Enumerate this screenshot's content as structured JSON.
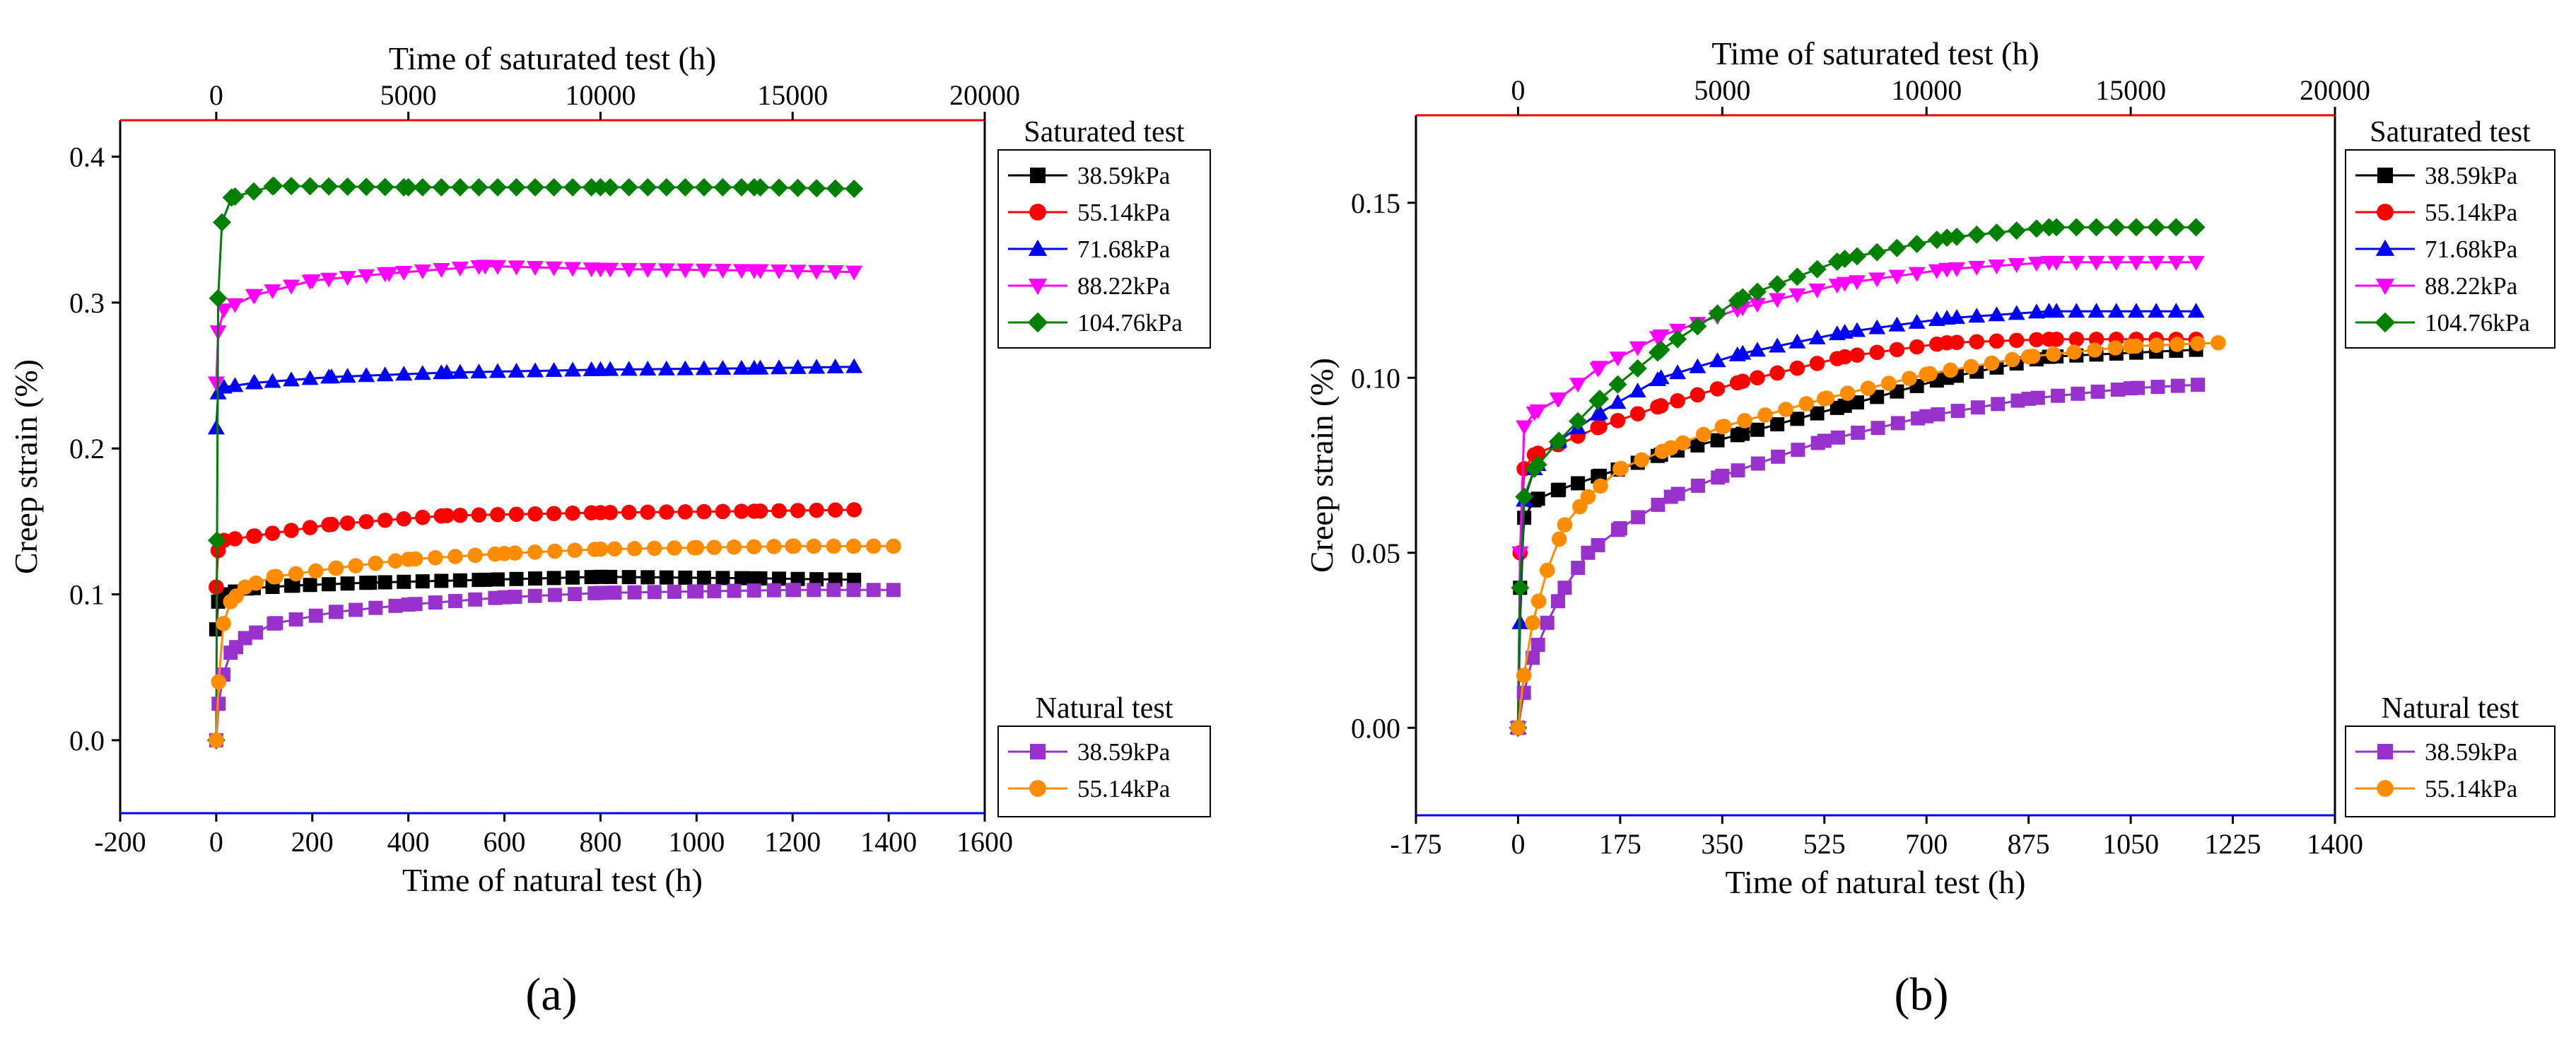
{
  "chart_data": [
    {
      "panel": "a",
      "type": "line",
      "top_xlabel": "Time of saturated test (h)",
      "top_xlim": [
        -2500,
        20000
      ],
      "top_ticks": [
        "0",
        "5000",
        "10000",
        "15000",
        "20000"
      ],
      "top_tick_values": [
        0,
        5000,
        10000,
        15000,
        20000
      ],
      "xlabel": "Time of natural test (h)",
      "xlim": [
        -200,
        1600
      ],
      "xticks": [
        "-200",
        "0",
        "200",
        "400",
        "600",
        "800",
        "1000",
        "1200",
        "1400",
        "1600"
      ],
      "xtick_values": [
        -200,
        0,
        200,
        400,
        600,
        800,
        1000,
        1200,
        1400,
        1600
      ],
      "ylabel": "Creep strain (%)",
      "ylim": [
        -0.05,
        0.425
      ],
      "yticks": [
        "0.0",
        "0.1",
        "0.2",
        "0.3",
        "0.4"
      ],
      "ytick_values": [
        0.0,
        0.1,
        0.2,
        0.3,
        0.4
      ],
      "legend_saturated_title": "Saturated test",
      "legend_natural_title": "Natural test",
      "series": [
        {
          "group": "saturated",
          "name": "38.59kPa",
          "color": "#000000",
          "marker": "square",
          "t_max": 16600,
          "y_max": 0.11,
          "x": [
            0,
            50,
            200,
            800,
            2000,
            4000,
            7000,
            10000,
            14000,
            16600
          ],
          "y": [
            0.076,
            0.095,
            0.1,
            0.104,
            0.106,
            0.108,
            0.11,
            0.112,
            0.111,
            0.11
          ]
        },
        {
          "group": "saturated",
          "name": "55.14kPa",
          "color": "#ff0000",
          "marker": "circle",
          "t_max": 16600,
          "y_max": 0.158,
          "x": [
            0,
            50,
            200,
            1000,
            3000,
            6000,
            10000,
            14000,
            16600
          ],
          "y": [
            0.105,
            0.13,
            0.137,
            0.14,
            0.148,
            0.154,
            0.156,
            0.157,
            0.158
          ]
        },
        {
          "group": "saturated",
          "name": "71.68kPa",
          "color": "#0000ff",
          "marker": "triangle-up",
          "t_max": 16600,
          "y_max": 0.256,
          "x": [
            0,
            50,
            200,
            1000,
            3000,
            6000,
            10000,
            14000,
            16600
          ],
          "y": [
            0.214,
            0.238,
            0.242,
            0.245,
            0.249,
            0.252,
            0.254,
            0.255,
            0.256
          ]
        },
        {
          "group": "saturated",
          "name": "88.22kPa",
          "color": "#ff00ff",
          "marker": "triangle-down",
          "t_max": 16600,
          "y_max": 0.322,
          "x": [
            0,
            50,
            200,
            1000,
            2500,
            4500,
            7000,
            10000,
            14000,
            16600
          ],
          "y": [
            0.245,
            0.28,
            0.295,
            0.305,
            0.315,
            0.32,
            0.325,
            0.323,
            0.322,
            0.321
          ]
        },
        {
          "group": "saturated",
          "name": "104.76kPa",
          "color": "#008000",
          "marker": "diamond",
          "t_max": 16600,
          "y_max": 0.378,
          "x": [
            0,
            20,
            50,
            150,
            400,
            1500,
            5000,
            10000,
            14000,
            16600
          ],
          "y": [
            0.0,
            0.137,
            0.303,
            0.355,
            0.372,
            0.38,
            0.379,
            0.379,
            0.379,
            0.378
          ]
        },
        {
          "group": "natural",
          "name": "38.59kPa",
          "color": "#9932cc",
          "marker": "square",
          "t_max": 1410,
          "y_max": 0.103,
          "x": [
            0,
            5,
            15,
            30,
            60,
            120,
            250,
            400,
            600,
            800,
            1000,
            1200,
            1410
          ],
          "y": [
            0.0,
            0.025,
            0.045,
            0.06,
            0.07,
            0.08,
            0.088,
            0.093,
            0.098,
            0.101,
            0.102,
            0.103,
            0.103
          ]
        },
        {
          "group": "natural",
          "name": "55.14kPa",
          "color": "#ff8c00",
          "marker": "circle",
          "t_max": 1410,
          "y_max": 0.133,
          "x": [
            0,
            5,
            15,
            30,
            60,
            120,
            250,
            400,
            600,
            800,
            1000,
            1200,
            1410
          ],
          "y": [
            0.0,
            0.04,
            0.08,
            0.095,
            0.105,
            0.112,
            0.118,
            0.124,
            0.128,
            0.131,
            0.132,
            0.133,
            0.133
          ]
        }
      ]
    },
    {
      "panel": "b",
      "type": "line",
      "top_xlabel": "Time of saturated test (h)",
      "top_xlim": [
        -2500,
        20000
      ],
      "top_ticks": [
        "0",
        "5000",
        "10000",
        "15000",
        "20000"
      ],
      "top_tick_values": [
        0,
        5000,
        10000,
        15000,
        20000
      ],
      "xlabel": "Time of natural test (h)",
      "xlim": [
        -175,
        1400
      ],
      "xticks": [
        "-175",
        "0",
        "175",
        "350",
        "525",
        "700",
        "875",
        "1050",
        "1225",
        "1400"
      ],
      "xtick_values": [
        -175,
        0,
        175,
        350,
        525,
        700,
        875,
        1050,
        1225,
        1400
      ],
      "ylabel": "Creep strain (%)",
      "ylim": [
        -0.025,
        0.175
      ],
      "yticks": [
        "0.00",
        "0.05",
        "0.10",
        "0.15"
      ],
      "ytick_values": [
        0.0,
        0.05,
        0.1,
        0.15
      ],
      "legend_saturated_title": "Saturated test",
      "legend_natural_title": "Natural test",
      "series": [
        {
          "group": "saturated",
          "name": "38.59kPa",
          "color": "#000000",
          "marker": "square",
          "t_max": 16600,
          "y_max": 0.108,
          "x": [
            0,
            50,
            150,
            400,
            1000,
            2000,
            3500,
            5500,
            8000,
            10500,
            13000,
            16600
          ],
          "y": [
            0.0,
            0.04,
            0.06,
            0.065,
            0.068,
            0.072,
            0.078,
            0.084,
            0.092,
            0.1,
            0.106,
            0.108
          ]
        },
        {
          "group": "saturated",
          "name": "55.14kPa",
          "color": "#ff0000",
          "marker": "circle",
          "t_max": 16600,
          "y_max": 0.111,
          "x": [
            0,
            50,
            150,
            400,
            1000,
            2000,
            3500,
            5500,
            8000,
            10500,
            13000,
            16600
          ],
          "y": [
            0.0,
            0.05,
            0.074,
            0.078,
            0.081,
            0.086,
            0.092,
            0.099,
            0.106,
            0.11,
            0.111,
            0.111
          ]
        },
        {
          "group": "saturated",
          "name": "71.68kPa",
          "color": "#0000ff",
          "marker": "triangle-up",
          "t_max": 16600,
          "y_max": 0.119,
          "x": [
            0,
            50,
            150,
            400,
            1000,
            2000,
            3500,
            5500,
            8000,
            10500,
            13000,
            16600
          ],
          "y": [
            0.0,
            0.03,
            0.065,
            0.074,
            0.082,
            0.09,
            0.1,
            0.107,
            0.113,
            0.117,
            0.119,
            0.119
          ]
        },
        {
          "group": "saturated",
          "name": "88.22kPa",
          "color": "#ff00ff",
          "marker": "triangle-down",
          "t_max": 16600,
          "y_max": 0.133,
          "x": [
            0,
            50,
            150,
            400,
            1000,
            2000,
            3500,
            5500,
            8000,
            10500,
            13000,
            16600
          ],
          "y": [
            0.0,
            0.05,
            0.086,
            0.09,
            0.094,
            0.103,
            0.112,
            0.12,
            0.127,
            0.131,
            0.133,
            0.133
          ]
        },
        {
          "group": "saturated",
          "name": "104.76kPa",
          "color": "#008000",
          "marker": "diamond",
          "t_max": 16600,
          "y_max": 0.143,
          "x": [
            0,
            50,
            150,
            400,
            1000,
            2000,
            3500,
            5500,
            8000,
            10500,
            13000,
            16600
          ],
          "y": [
            0.0,
            0.04,
            0.066,
            0.074,
            0.082,
            0.094,
            0.108,
            0.123,
            0.134,
            0.14,
            0.143,
            0.143
          ]
        },
        {
          "group": "natural",
          "name": "38.59kPa",
          "color": "#9932cc",
          "marker": "square",
          "t_max": 1165,
          "y_max": 0.098,
          "x": [
            0,
            10,
            25,
            50,
            80,
            120,
            175,
            262,
            350,
            525,
            700,
            875,
            1050,
            1165
          ],
          "y": [
            0.0,
            0.01,
            0.02,
            0.03,
            0.04,
            0.05,
            0.057,
            0.066,
            0.072,
            0.082,
            0.089,
            0.094,
            0.097,
            0.098
          ]
        },
        {
          "group": "natural",
          "name": "55.14kPa",
          "color": "#ff8c00",
          "marker": "circle",
          "t_max": 1200,
          "y_max": 0.11,
          "x": [
            0,
            10,
            25,
            50,
            80,
            120,
            175,
            262,
            350,
            525,
            700,
            875,
            1050,
            1200
          ],
          "y": [
            0.0,
            0.015,
            0.03,
            0.045,
            0.058,
            0.066,
            0.074,
            0.08,
            0.086,
            0.094,
            0.101,
            0.106,
            0.109,
            0.11
          ]
        }
      ]
    }
  ],
  "panel_labels": [
    "(a)",
    "(b)"
  ]
}
